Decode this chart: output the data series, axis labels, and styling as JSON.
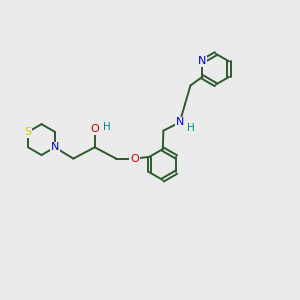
{
  "bg_color": "#ebebeb",
  "bond_color": "#2d5a2d",
  "bond_width": 1.4,
  "atom_colors": {
    "N": "#0000cc",
    "O": "#cc0000",
    "S": "#cccc00",
    "H": "#008888",
    "C": "#2d5a2d"
  },
  "fig_size": [
    3.0,
    3.0
  ],
  "dpi": 100
}
